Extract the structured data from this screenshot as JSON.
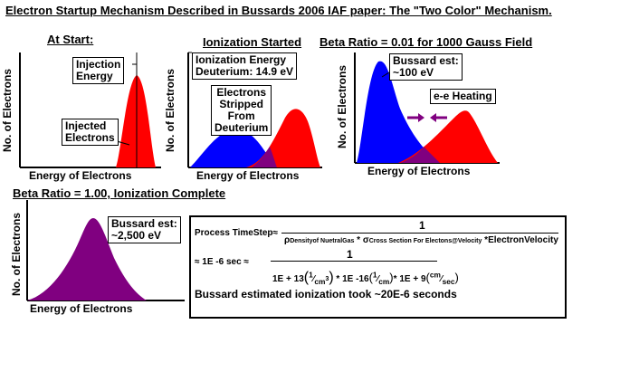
{
  "title": "Electron Startup Mechanism Described in Bussards 2006 IAF paper: The \"Two Color\" Mechanism.",
  "panels": {
    "p1": {
      "title": "At Start:",
      "ylabel": "No. of Electrons",
      "xlabel": "Energy of Electrons",
      "label_injection": [
        "Injection",
        "Energy"
      ],
      "label_injected": [
        "Injected",
        "Electrons"
      ]
    },
    "p2": {
      "title": "Ionization Started",
      "ylabel": "No. of Electrons",
      "xlabel": "Energy of Electrons",
      "label_ionization": [
        "Ionization Energy",
        "Deuterium: 14.9 eV"
      ],
      "label_stripped": [
        "Electrons",
        "Stripped",
        "From",
        "Deuterium"
      ]
    },
    "p3": {
      "title": "Beta Ratio = 0.01 for 1000 Gauss Field",
      "ylabel": "No. of Electrons",
      "xlabel": "Energy of Electrons",
      "label_bussard": [
        "Bussard est:",
        "~100 eV"
      ],
      "label_heating": "e-e Heating"
    },
    "p4": {
      "title": "Beta Ratio = 1.00, Ionization Complete",
      "ylabel": "No. of Electrons",
      "xlabel": "Energy of Electrons",
      "label_bussard": [
        "Bussard est:",
        "~2,500 eV"
      ]
    }
  },
  "formula": {
    "lhs": "Process TimeStep≈",
    "numerator": "1",
    "rho": "ρ",
    "rho_sub": "Densityof NuetralGas",
    "sigma": "σ",
    "sigma_sub": "Cross Section For Electons@Velocity",
    "velocity": "ElectronVelocity",
    "times": "*",
    "approx_lhs": "≈ 1E -6 sec ≈",
    "d_1E": "1E",
    "d_plus13": "+ 13",
    "d_one": "1",
    "d_cm3": "cm",
    "d_cube": "3",
    "d_mid": "1E -16",
    "d_cm": "cm",
    "d_tail1": "1E + 9",
    "d_cmsec_top": "cm",
    "d_cmsec_bot": "sec",
    "note": "Bussard estimated ionization took ~20E-6 seconds"
  },
  "colors": {
    "red": "#ff0000",
    "blue": "#0000ff",
    "purple": "#800080",
    "black": "#000000"
  }
}
